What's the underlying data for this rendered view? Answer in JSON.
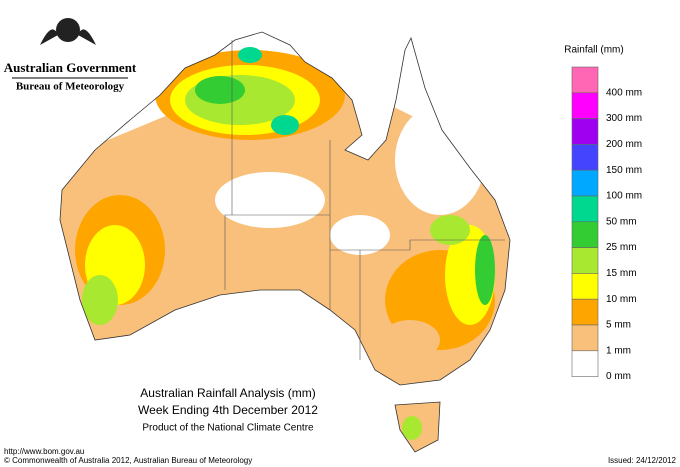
{
  "header": {
    "government": "Australian Government",
    "bureau": "Bureau of Meteorology"
  },
  "legend": {
    "title": "Rainfall (mm)",
    "colors": [
      "#ff66b3",
      "#ff00ff",
      "#a000f0",
      "#4444ff",
      "#00a8ff",
      "#00d890",
      "#33cc33",
      "#a8e830",
      "#ffff00",
      "#ffa500",
      "#f9c07c",
      "#ffffff"
    ],
    "labels": [
      "400 mm",
      "300 mm",
      "200 mm",
      "150 mm",
      "100 mm",
      "50 mm",
      "25 mm",
      "15 mm",
      "10 mm",
      "5 mm",
      "1 mm",
      "0 mm"
    ]
  },
  "title": {
    "line1": "Australian Rainfall Analysis (mm)",
    "line2": "Week Ending 4th December 2012",
    "line3": "Product of the National Climate Centre"
  },
  "footer": {
    "url": "http://www.bom.gov.au",
    "copyright": "© Commonwealth of Australia 2012, Australian Bureau of Meteorology",
    "issued": "Issued: 24/12/2012"
  }
}
